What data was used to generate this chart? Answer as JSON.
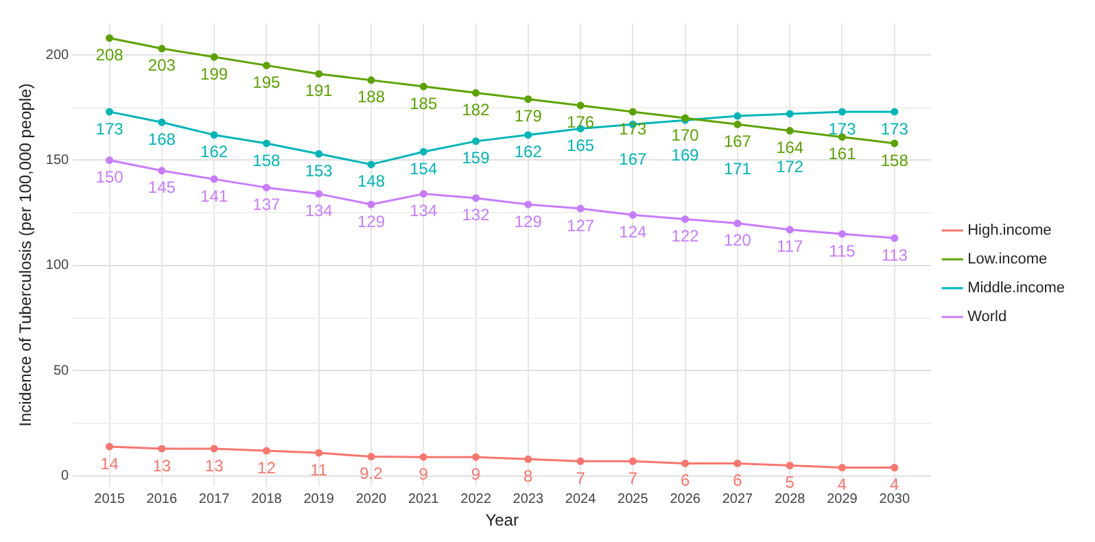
{
  "chart_data": {
    "type": "line",
    "xlabel": "Year",
    "ylabel": "Incidence of Tuberculosis (per 100,000 people)",
    "x": [
      2015,
      2016,
      2017,
      2018,
      2019,
      2020,
      2021,
      2022,
      2023,
      2024,
      2025,
      2026,
      2027,
      2028,
      2029,
      2030
    ],
    "xlim": [
      2014.3,
      2030.7
    ],
    "xticks": [
      2015,
      2016,
      2017,
      2018,
      2019,
      2020,
      2021,
      2022,
      2023,
      2024,
      2025,
      2026,
      2027,
      2028,
      2029,
      2030
    ],
    "ylim": [
      -5,
      215
    ],
    "yticks": [
      0,
      {
        "value": 25,
        "label": null
      },
      50,
      {
        "value": 75,
        "label": null
      },
      100,
      {
        "value": 125,
        "label": null
      },
      150,
      {
        "value": 175,
        "label": null
      },
      200
    ],
    "series": [
      {
        "name": "High.income",
        "color": "#f8766d",
        "values": [
          14,
          13,
          13,
          12,
          11,
          9.2,
          9,
          9,
          8,
          7,
          7,
          6,
          6,
          5,
          4,
          4
        ]
      },
      {
        "name": "Low.income",
        "color": "#5ba300",
        "values": [
          208,
          203,
          199,
          195,
          191,
          188,
          185,
          182,
          179,
          176,
          173,
          170,
          167,
          164,
          161,
          158
        ]
      },
      {
        "name": "Middle.income",
        "color": "#00b5b8",
        "values": [
          173,
          168,
          162,
          158,
          153,
          148,
          154,
          159,
          162,
          165,
          167,
          169,
          171,
          172,
          173,
          173
        ]
      },
      {
        "name": "World",
        "color": "#c77cff",
        "values": [
          150,
          145,
          141,
          137,
          134,
          129,
          134,
          132,
          129,
          127,
          124,
          122,
          120,
          117,
          115,
          113
        ]
      }
    ],
    "data_labels": true,
    "grid": true,
    "legend": "right",
    "marker": "circle",
    "line_style": "solid"
  }
}
